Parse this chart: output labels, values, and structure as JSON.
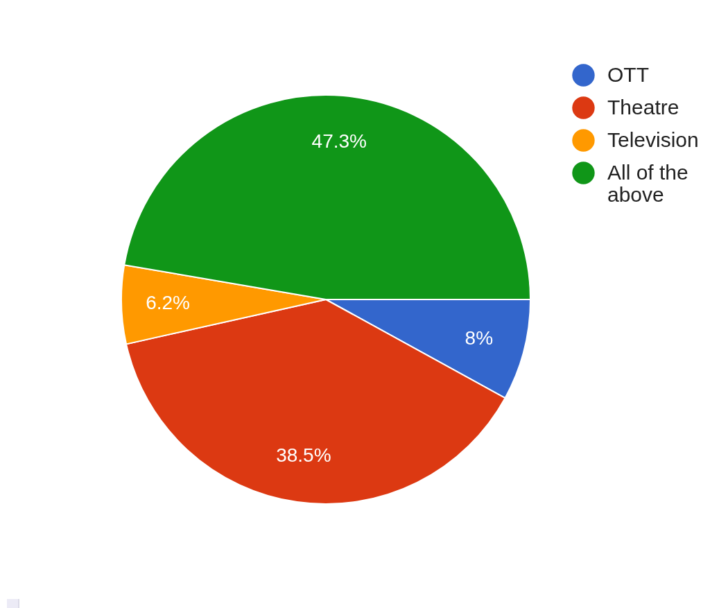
{
  "chart_data": {
    "type": "pie",
    "categories": [
      "OTT",
      "Theatre",
      "Television",
      "All of the above"
    ],
    "values": [
      8,
      38.5,
      6.2,
      47.3
    ],
    "colors": [
      "#3366cc",
      "#dc3912",
      "#ff9900",
      "#109618"
    ],
    "value_labels": [
      "8%",
      "38.5%",
      "6.2%",
      "47.3%"
    ],
    "legend": "top right"
  }
}
